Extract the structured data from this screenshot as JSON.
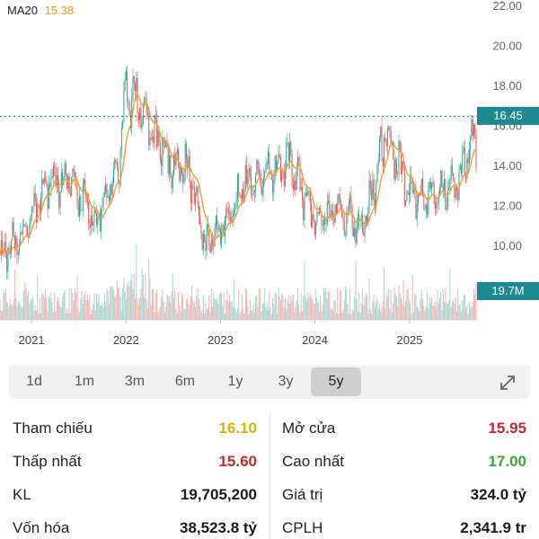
{
  "indicator": {
    "label": "MA20",
    "value": "15.38"
  },
  "price_axis": [
    "22.00",
    "20.00",
    "18.00",
    "16.00",
    "14.00",
    "12.00",
    "10.00"
  ],
  "current_price": "16.45",
  "volume_badge": "19.7M",
  "year_axis": [
    "2021",
    "2022",
    "2023",
    "2024",
    "2025"
  ],
  "periods": [
    "1d",
    "1m",
    "3m",
    "6m",
    "1y",
    "3y",
    "5y"
  ],
  "active_period": "5y",
  "stats": {
    "tham_chieu": {
      "label": "Tham chiếu",
      "value": "16.10",
      "color": "#e0b000"
    },
    "mo_cua": {
      "label": "Mở cửa",
      "value": "15.95",
      "color": "#c62828"
    },
    "thap_nhat": {
      "label": "Thấp nhất",
      "value": "15.60",
      "color": "#c62828"
    },
    "cao_nhat": {
      "label": "Cao nhất",
      "value": "17.00",
      "color": "#3aa63a"
    },
    "kl": {
      "label": "KL",
      "value": "19,705,200"
    },
    "gia_tri": {
      "label": "Giá trị",
      "value": "324.0 tỷ"
    },
    "von_hoa": {
      "label": "Vốn hóa",
      "value": "38,523.8 tỷ"
    },
    "cplh": {
      "label": "CPLH",
      "value": "2,341.9 tr"
    }
  },
  "colors": {
    "up": "#26a69a",
    "down": "#ef5350",
    "ma": "#f0a030",
    "badge": "#1d8a92"
  },
  "chart_data": {
    "type": "line",
    "x": [
      "2020-09",
      "2020-12",
      "2021-03",
      "2021-06",
      "2021-09",
      "2021-12",
      "2022-01",
      "2022-03",
      "2022-06",
      "2022-09",
      "2022-11",
      "2023-01",
      "2023-04",
      "2023-07",
      "2023-10",
      "2024-01",
      "2024-04",
      "2024-07",
      "2024-10",
      "2025-01",
      "2025-04",
      "2025-07",
      "2025-09"
    ],
    "series": [
      {
        "name": "MA20",
        "values": [
          9.5,
          10.6,
          13.2,
          13.3,
          11.1,
          13.8,
          17.9,
          17.1,
          14.5,
          13.6,
          9.9,
          10.8,
          13.0,
          13.8,
          14.1,
          11.2,
          11.8,
          10.9,
          15.5,
          12.8,
          12.4,
          13.2,
          15.38
        ]
      }
    ],
    "ylim": [
      8.5,
      22.0
    ]
  }
}
